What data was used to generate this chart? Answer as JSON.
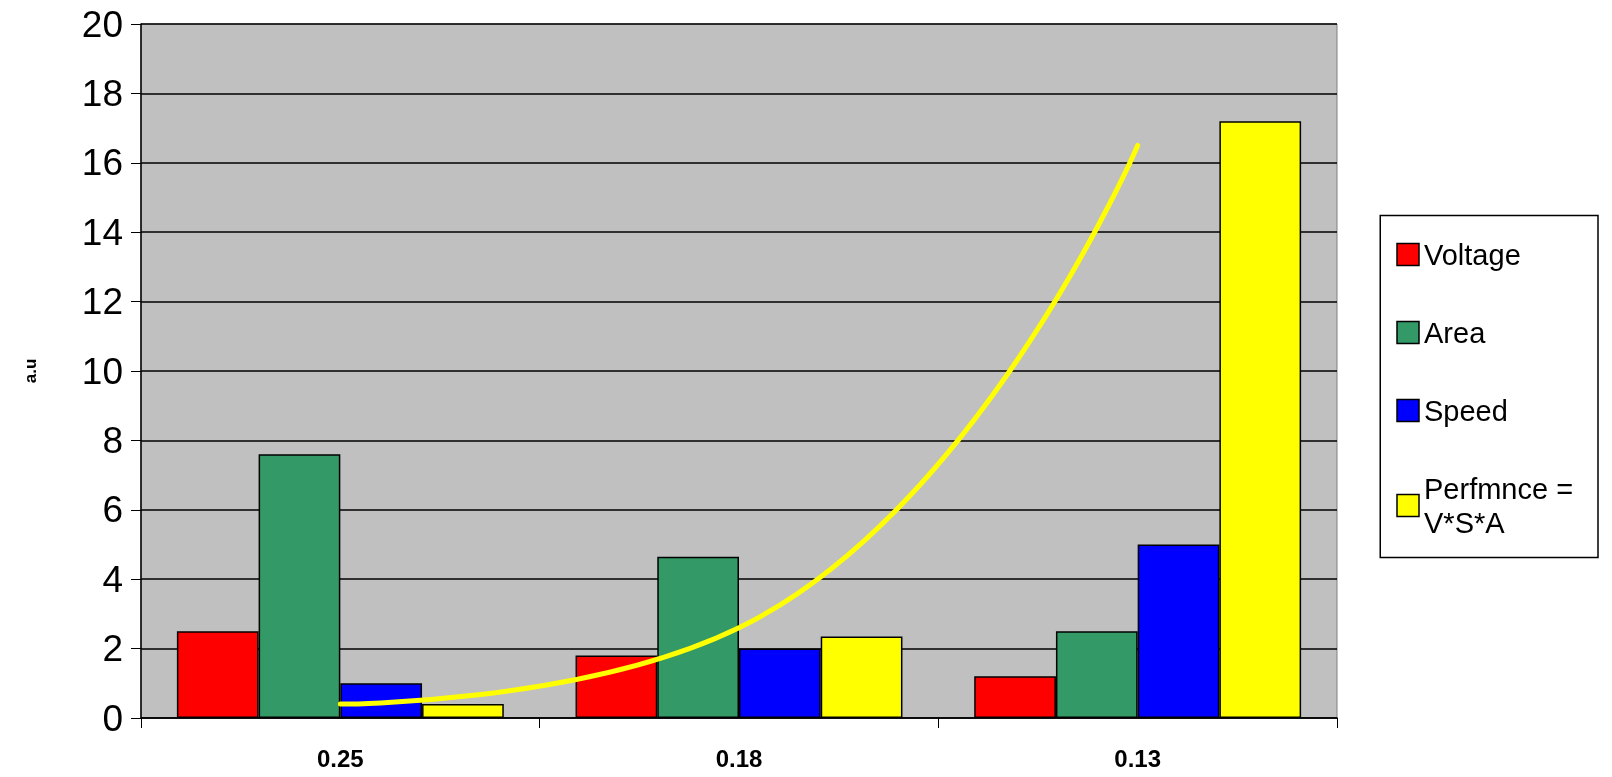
{
  "chart_data": {
    "type": "bar",
    "ylabel": "a.u",
    "categories": [
      "0.25",
      "0.18",
      "0.13"
    ],
    "series": [
      {
        "name": "Voltage",
        "color": "#ff0000",
        "values": [
          2.5,
          1.8,
          1.2
        ]
      },
      {
        "name": "Area",
        "color": "#339966",
        "values": [
          7.6,
          4.65,
          2.5
        ]
      },
      {
        "name": "Speed",
        "color": "#0000ff",
        "values": [
          1.0,
          2.0,
          5.0
        ]
      },
      {
        "name": "Perfmnce = V*S*A",
        "color": "#ffff00",
        "values": [
          0.4,
          2.35,
          17.2
        ]
      },
      {
        "type": "line",
        "color": "#ffff00",
        "values": [
          0.4,
          2.6,
          16.5
        ]
      }
    ],
    "ylim": [
      0,
      20
    ],
    "yticks": [
      0,
      2,
      4,
      6,
      8,
      10,
      12,
      14,
      16,
      18,
      20
    ],
    "grid": "y",
    "legend": "right",
    "marker": "none",
    "line_style": "solid"
  }
}
